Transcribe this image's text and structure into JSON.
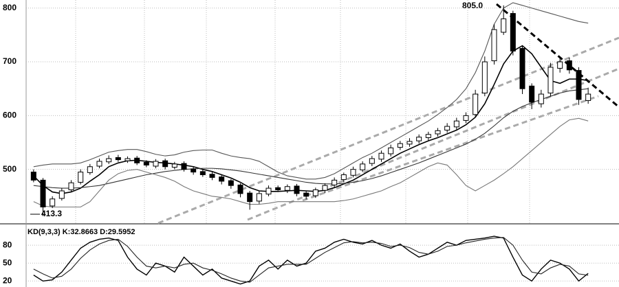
{
  "chart_data": [
    {
      "type": "candlestick",
      "ylim": [
        400,
        815
      ],
      "yticks": [
        500,
        600,
        700,
        800
      ],
      "grid": true,
      "up_color": "#ffffff",
      "down_color": "#000000",
      "open": [
        495,
        480,
        432,
        446,
        462,
        476,
        494,
        506,
        514,
        522,
        516,
        521,
        513,
        506,
        516,
        504,
        511,
        501,
        496,
        491,
        486,
        479,
        471,
        456,
        441,
        454,
        466,
        461,
        469,
        456,
        451,
        461,
        471,
        481,
        489,
        499,
        511,
        519,
        529,
        541,
        547,
        553,
        559,
        566,
        573,
        579,
        591,
        602,
        642,
        702,
        755,
        790,
        725,
        655,
        622,
        642,
        688,
        702,
        684,
        628
      ],
      "high": [
        500,
        484,
        450,
        465,
        480,
        500,
        510,
        520,
        526,
        527,
        524,
        525,
        517,
        519,
        520,
        514,
        515,
        505,
        500,
        495,
        490,
        482,
        474,
        460,
        460,
        470,
        470,
        472,
        473,
        460,
        466,
        474,
        485,
        494,
        505,
        515,
        525,
        535,
        546,
        553,
        558,
        565,
        570,
        577,
        586,
        596,
        606,
        648,
        710,
        770,
        805,
        795,
        730,
        660,
        648,
        698,
        708,
        708,
        690,
        652
      ],
      "low": [
        476,
        413.3,
        428,
        442,
        458,
        472,
        490,
        502,
        510,
        514,
        512,
        508,
        504,
        502,
        500,
        500,
        496,
        490,
        486,
        480,
        472,
        464,
        448,
        425,
        436,
        450,
        458,
        456,
        450,
        444,
        447,
        456,
        466,
        476,
        485,
        495,
        506,
        514,
        524,
        536,
        542,
        548,
        554,
        561,
        568,
        574,
        586,
        598,
        636,
        695,
        750,
        712,
        640,
        612,
        615,
        636,
        680,
        678,
        620,
        622
      ],
      "close": [
        480,
        430,
        445,
        460,
        475,
        495,
        505,
        515,
        520,
        518,
        520,
        512,
        508,
        515,
        505,
        510,
        500,
        495,
        490,
        485,
        478,
        470,
        455,
        440,
        455,
        465,
        462,
        468,
        455,
        450,
        462,
        470,
        480,
        490,
        500,
        510,
        520,
        530,
        540,
        548,
        552,
        560,
        565,
        572,
        580,
        590,
        600,
        640,
        700,
        760,
        780,
        720,
        650,
        625,
        640,
        690,
        700,
        685,
        630,
        640
      ],
      "overlays": [
        {
          "color": "#000000",
          "values": [
            488,
            470,
            458,
            455,
            458,
            465,
            478,
            490,
            505,
            512,
            516,
            517,
            515,
            513,
            512,
            510,
            508,
            505,
            500,
            496,
            490,
            484,
            476,
            466,
            460,
            459,
            459,
            460,
            461,
            460,
            459,
            461,
            466,
            473,
            480,
            490,
            500,
            510,
            520,
            530,
            538,
            546,
            553,
            559,
            566,
            573,
            583,
            597,
            622,
            658,
            696,
            720,
            730,
            715,
            690,
            665,
            660,
            668,
            668,
            665
          ]
        },
        {
          "color": "#333333",
          "values": [
            470,
            468,
            466,
            465,
            465,
            466,
            468,
            470,
            474,
            478,
            482,
            486,
            490,
            493,
            496,
            498,
            500,
            501,
            502,
            502,
            501,
            499,
            497,
            494,
            491,
            488,
            485,
            482,
            479,
            476,
            474,
            473,
            473,
            474,
            476,
            479,
            483,
            488,
            494,
            500,
            506,
            512,
            519,
            526,
            533,
            540,
            547,
            556,
            567,
            581,
            596,
            608,
            617,
            624,
            630,
            636,
            642,
            646,
            648,
            650
          ]
        },
        {
          "color": "#555555",
          "values": [
            505,
            508,
            510,
            510,
            510,
            512,
            518,
            525,
            532,
            535,
            537,
            537,
            533,
            528,
            525,
            527,
            532,
            535,
            536,
            536,
            530,
            525,
            522,
            520,
            515,
            505,
            495,
            488,
            485,
            482,
            482,
            485,
            492,
            502,
            512,
            522,
            530,
            540,
            550,
            560,
            570,
            580,
            590,
            602,
            615,
            630,
            650,
            680,
            720,
            770,
            800,
            810,
            805,
            800,
            795,
            790,
            785,
            780,
            775,
            772
          ]
        },
        {
          "color": "#777777",
          "values": [
            440,
            432,
            430,
            430,
            430,
            430,
            440,
            460,
            480,
            492,
            498,
            500,
            495,
            490,
            485,
            478,
            468,
            460,
            455,
            450,
            448,
            445,
            440,
            435,
            435,
            437,
            440,
            440,
            440,
            440,
            440,
            440,
            440,
            442,
            445,
            450,
            455,
            460,
            468,
            475,
            485,
            495,
            505,
            512,
            508,
            490,
            470,
            460,
            470,
            480,
            492,
            505,
            520,
            535,
            550,
            565,
            580,
            592,
            595,
            590
          ]
        }
      ],
      "annotations": [
        "805.0",
        "413.3"
      ]
    },
    {
      "type": "line",
      "title": "KD(9,3,3) K:32.8663 D:29.5952",
      "ylim": [
        10,
        102
      ],
      "yticks": [
        20,
        50,
        80
      ],
      "grid": true,
      "series": [
        {
          "color": "#000000",
          "values": [
            30,
            20,
            22,
            35,
            55,
            75,
            85,
            90,
            92,
            88,
            60,
            40,
            30,
            50,
            45,
            35,
            60,
            45,
            30,
            40,
            25,
            20,
            15,
            20,
            45,
            55,
            40,
            55,
            45,
            50,
            70,
            75,
            85,
            90,
            85,
            82,
            88,
            80,
            75,
            82,
            70,
            60,
            65,
            75,
            85,
            80,
            88,
            90,
            92,
            95,
            92,
            60,
            30,
            20,
            40,
            55,
            50,
            40,
            20,
            32.8663
          ]
        },
        {
          "color": "#222222",
          "values": [
            40,
            32,
            25,
            28,
            40,
            58,
            72,
            82,
            88,
            90,
            78,
            60,
            45,
            42,
            45,
            42,
            48,
            50,
            42,
            38,
            32,
            25,
            20,
            18,
            30,
            42,
            45,
            48,
            48,
            48,
            58,
            68,
            76,
            84,
            86,
            84,
            85,
            83,
            78,
            80,
            76,
            68,
            65,
            70,
            78,
            80,
            84,
            87,
            90,
            92,
            93,
            80,
            55,
            35,
            32,
            42,
            48,
            45,
            32,
            29.5952
          ]
        }
      ]
    }
  ]
}
